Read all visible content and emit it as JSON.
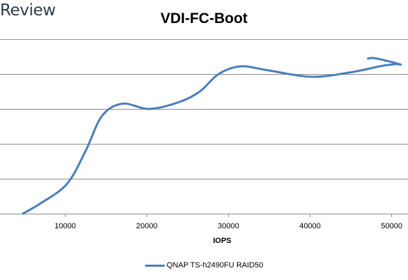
{
  "brand": {
    "text": "Review"
  },
  "chart_data": {
    "type": "line",
    "title": "VDI-FC-Boot",
    "xlabel": "IOPS",
    "ylabel": "",
    "xlim": [
      2000,
      52000
    ],
    "ylim": [
      0,
      5
    ],
    "x_ticks": [
      10000,
      20000,
      30000,
      40000,
      50000
    ],
    "y_gridlines": [
      1,
      2,
      3,
      4,
      5
    ],
    "grid": "horizontal",
    "legend_position": "bottom",
    "colors": {
      "series": "#4a7ebb",
      "grid": "#8c8c8c",
      "axis": "#8c8c8c"
    },
    "series": [
      {
        "name": "QNAP TS-h2490FU RAID50",
        "points": [
          [
            4800,
            0.0
          ],
          [
            7000,
            0.3
          ],
          [
            10200,
            0.85
          ],
          [
            12500,
            1.8
          ],
          [
            14500,
            2.8
          ],
          [
            17000,
            3.15
          ],
          [
            20300,
            3.0
          ],
          [
            24000,
            3.2
          ],
          [
            26500,
            3.5
          ],
          [
            28800,
            4.0
          ],
          [
            31500,
            4.22
          ],
          [
            35000,
            4.1
          ],
          [
            40200,
            3.92
          ],
          [
            45000,
            4.05
          ],
          [
            48500,
            4.22
          ],
          [
            50300,
            4.28
          ],
          [
            51000,
            4.28
          ],
          [
            48000,
            4.45
          ],
          [
            47100,
            4.44
          ]
        ]
      }
    ]
  }
}
